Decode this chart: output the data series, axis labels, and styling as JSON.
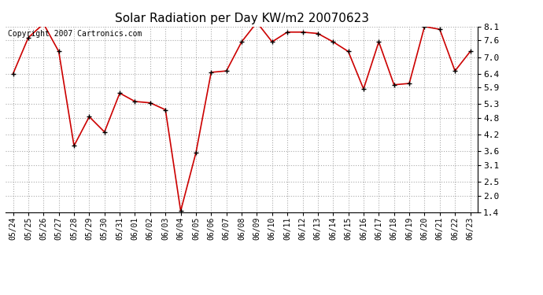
{
  "title": "Solar Radiation per Day KW/m2 20070623",
  "copyright_text": "Copyright 2007 Cartronics.com",
  "dates": [
    "05/24",
    "05/25",
    "05/26",
    "05/27",
    "05/28",
    "05/29",
    "05/30",
    "05/31",
    "06/01",
    "06/02",
    "06/03",
    "06/04",
    "06/05",
    "06/06",
    "06/07",
    "06/08",
    "06/09",
    "06/10",
    "06/11",
    "06/12",
    "06/13",
    "06/14",
    "06/15",
    "06/16",
    "06/17",
    "06/18",
    "06/19",
    "06/20",
    "06/21",
    "06/22",
    "06/23"
  ],
  "values": [
    6.4,
    7.7,
    8.2,
    7.2,
    3.8,
    4.85,
    4.3,
    5.7,
    5.4,
    5.35,
    5.1,
    1.45,
    3.55,
    6.45,
    6.5,
    7.55,
    8.25,
    7.55,
    7.9,
    7.9,
    7.85,
    7.55,
    7.2,
    5.85,
    7.55,
    6.0,
    6.05,
    8.1,
    8.0,
    6.5,
    7.2
  ],
  "line_color": "#cc0000",
  "marker": "+",
  "marker_size": 5,
  "marker_color": "#000000",
  "bg_color": "#ffffff",
  "grid_color": "#aaaaaa",
  "ylim": [
    1.4,
    8.1
  ],
  "yticks": [
    1.4,
    2.0,
    2.5,
    3.1,
    3.6,
    4.2,
    4.8,
    5.3,
    5.9,
    6.4,
    7.0,
    7.6,
    8.1
  ],
  "title_fontsize": 11,
  "copyright_fontsize": 7,
  "tick_fontsize": 7,
  "ytick_fontsize": 8
}
